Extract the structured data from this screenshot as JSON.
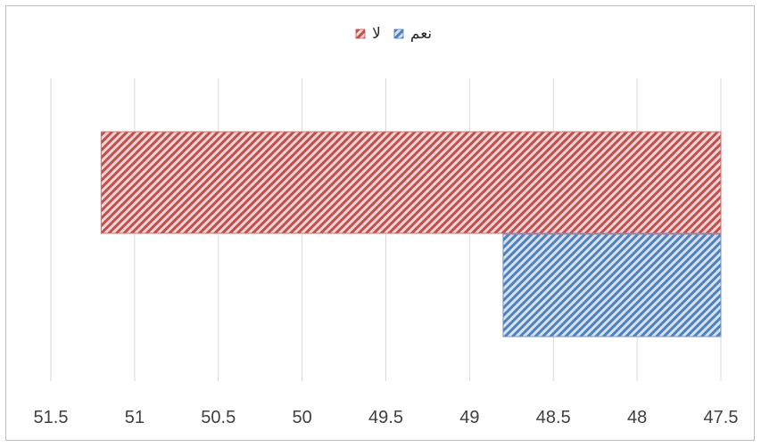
{
  "chart_data": {
    "type": "bar",
    "orientation": "horizontal",
    "x_axis_reversed": true,
    "xlim": [
      47.5,
      51.5
    ],
    "ticks": [
      47.5,
      48,
      48.5,
      49,
      49.5,
      50,
      50.5,
      51,
      51.5
    ],
    "tick_labels": [
      "47.5",
      "48",
      "48.5",
      "49",
      "49.5",
      "50",
      "50.5",
      "51",
      "51.5"
    ],
    "grid": "vertical",
    "legend_position": "top",
    "series": [
      {
        "name": "نعم",
        "values": [
          48.8
        ],
        "color": "#8faadc",
        "pattern": "diagonal-stripes"
      },
      {
        "name": "لا",
        "values": [
          51.2
        ],
        "color": "#e8a0a0",
        "pattern": "diagonal-stripes"
      }
    ],
    "title": "",
    "xlabel": "",
    "ylabel": ""
  },
  "legend": {
    "yes_label": "نعم",
    "no_label": "لا"
  }
}
